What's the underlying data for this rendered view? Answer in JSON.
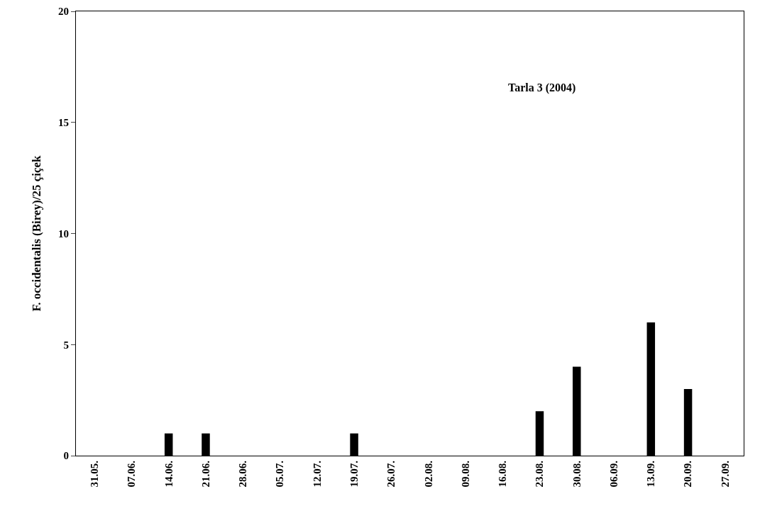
{
  "chart_data": {
    "type": "bar",
    "ylabel": "F. occidentalis (Birey)/25 çiçek",
    "annotations": [
      "Tarla 3 (2004)"
    ],
    "categories": [
      "31.05.",
      "07.06.",
      "14.06.",
      "21.06.",
      "28.06.",
      "05.07.",
      "12.07.",
      "19.07.",
      "26.07.",
      "02.08.",
      "09.08.",
      "16.08.",
      "23.08.",
      "30.08.",
      "06.09.",
      "13.09.",
      "20.09.",
      "27.09."
    ],
    "values": [
      0,
      0,
      1,
      1,
      0,
      0,
      0,
      1,
      0,
      0,
      0,
      0,
      2,
      4,
      0,
      6,
      3,
      0
    ],
    "color": "#000000",
    "ylim": [
      0,
      20
    ],
    "yticks": [
      0,
      5,
      10,
      15,
      20
    ],
    "grid": false,
    "legend": false
  }
}
